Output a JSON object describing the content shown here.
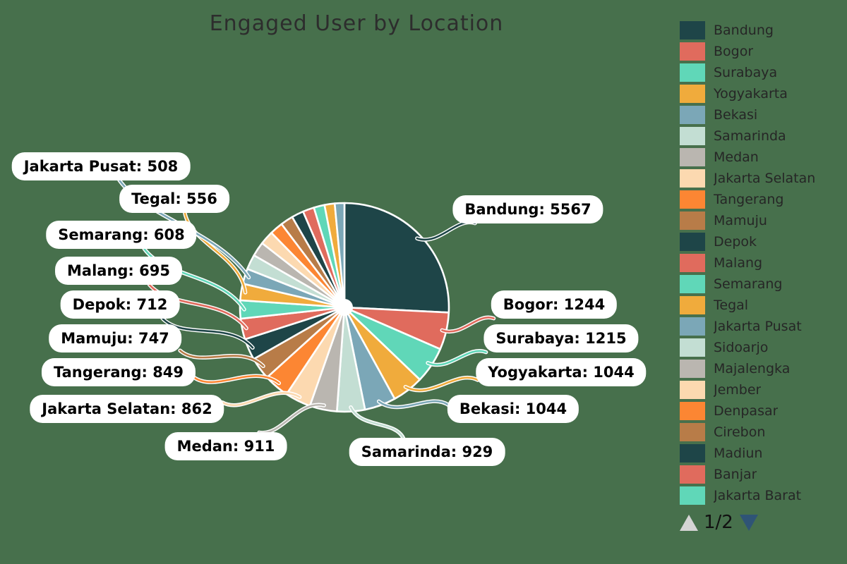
{
  "title": "Engaged User by Location",
  "colors": {
    "background": "#47704C",
    "pill_background": "#FFFFFF",
    "title_text": "#2D2D2D",
    "callout_text": "#000000",
    "legend_text": "#262626",
    "pagination_prev_triangle": "#D4D4D4",
    "pagination_next_triangle": "#2F5476"
  },
  "chart_data": {
    "type": "pie",
    "title": "Engaged User by Location",
    "start_angle_deg": 0,
    "direction": "clockwise",
    "slices": [
      {
        "label": "Bandung",
        "value": 5567,
        "color": "#1E4548",
        "callout": true
      },
      {
        "label": "Bogor",
        "value": 1244,
        "color": "#E06B5D",
        "callout": true
      },
      {
        "label": "Surabaya",
        "value": 1215,
        "color": "#60D7B8",
        "callout": true
      },
      {
        "label": "Yogyakarta",
        "value": 1044,
        "color": "#F0AB3C",
        "callout": true
      },
      {
        "label": "Bekasi",
        "value": 1044,
        "color": "#7BA7B7",
        "callout": true
      },
      {
        "label": "Samarinda",
        "value": 929,
        "color": "#C3DED3",
        "callout": true
      },
      {
        "label": "Medan",
        "value": 911,
        "color": "#BAB6B0",
        "callout": true
      },
      {
        "label": "Jakarta Selatan",
        "value": 862,
        "color": "#FCD9B0",
        "callout": true
      },
      {
        "label": "Tangerang",
        "value": 849,
        "color": "#FC8633",
        "callout": true
      },
      {
        "label": "Mamuju",
        "value": 747,
        "color": "#B87C48",
        "callout": true
      },
      {
        "label": "Depok",
        "value": 712,
        "color": "#1E4548",
        "callout": true
      },
      {
        "label": "Malang",
        "value": 695,
        "color": "#E06B5D",
        "callout": true
      },
      {
        "label": "Semarang",
        "value": 608,
        "color": "#60D7B8",
        "callout": true
      },
      {
        "label": "Tegal",
        "value": 556,
        "color": "#F0AB3C",
        "callout": true
      },
      {
        "label": "Jakarta Pusat",
        "value": 508,
        "color": "#7BA7B7",
        "callout": true
      },
      {
        "label": "Sidoarjo",
        "value": 500,
        "estimated": true,
        "color": "#C3DED3",
        "callout": false
      },
      {
        "label": "Majalengka",
        "value": 480,
        "estimated": true,
        "color": "#BAB6B0",
        "callout": false
      },
      {
        "label": "Jember",
        "value": 460,
        "estimated": true,
        "color": "#FCD9B0",
        "callout": false
      },
      {
        "label": "Denpasar",
        "value": 440,
        "estimated": true,
        "color": "#FC8633",
        "callout": false
      },
      {
        "label": "Cirebon",
        "value": 420,
        "estimated": true,
        "color": "#B87C48",
        "callout": false
      },
      {
        "label": "Madiun",
        "value": 400,
        "estimated": true,
        "color": "#1E4548",
        "callout": false
      },
      {
        "label": "Banjar",
        "value": 380,
        "estimated": true,
        "color": "#E06B5D",
        "callout": false
      },
      {
        "label": "Jakarta Barat",
        "value": 360,
        "estimated": true,
        "color": "#60D7B8",
        "callout": false
      },
      {
        "label": "",
        "value": 340,
        "estimated": true,
        "color": "#F0AB3C",
        "callout": false
      },
      {
        "label": "",
        "value": 320,
        "estimated": true,
        "color": "#7BA7B7",
        "callout": false
      }
    ]
  },
  "legend": {
    "page_label": "1/2",
    "items": [
      {
        "label": "Bandung",
        "color": "#1E4548"
      },
      {
        "label": "Bogor",
        "color": "#E06B5D"
      },
      {
        "label": "Surabaya",
        "color": "#60D7B8"
      },
      {
        "label": "Yogyakarta",
        "color": "#F0AB3C"
      },
      {
        "label": "Bekasi",
        "color": "#7BA7B7"
      },
      {
        "label": "Samarinda",
        "color": "#C3DED3"
      },
      {
        "label": "Medan",
        "color": "#BAB6B0"
      },
      {
        "label": "Jakarta Selatan",
        "color": "#FCD9B0"
      },
      {
        "label": "Tangerang",
        "color": "#FC8633"
      },
      {
        "label": "Mamuju",
        "color": "#B87C48"
      },
      {
        "label": "Depok",
        "color": "#1E4548"
      },
      {
        "label": "Malang",
        "color": "#E06B5D"
      },
      {
        "label": "Semarang",
        "color": "#60D7B8"
      },
      {
        "label": "Tegal",
        "color": "#F0AB3C"
      },
      {
        "label": "Jakarta Pusat",
        "color": "#7BA7B7"
      },
      {
        "label": "Sidoarjo",
        "color": "#C3DED3"
      },
      {
        "label": "Majalengka",
        "color": "#BAB6B0"
      },
      {
        "label": "Jember",
        "color": "#FCD9B0"
      },
      {
        "label": "Denpasar",
        "color": "#FC8633"
      },
      {
        "label": "Cirebon",
        "color": "#B87C48"
      },
      {
        "label": "Madiun",
        "color": "#1E4548"
      },
      {
        "label": "Banjar",
        "color": "#E06B5D"
      },
      {
        "label": "Jakarta Barat",
        "color": "#60D7B8"
      }
    ]
  }
}
